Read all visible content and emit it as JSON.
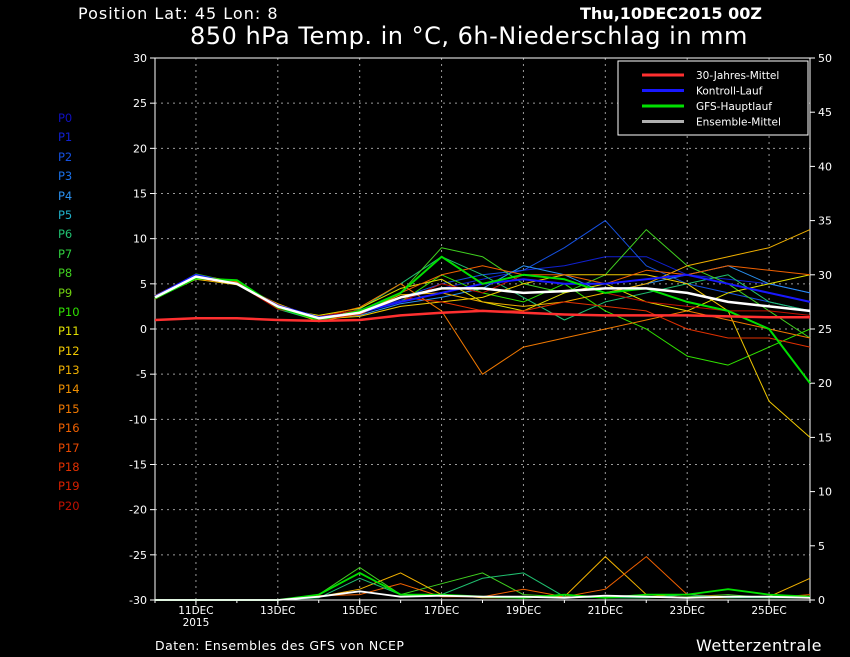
{
  "header": {
    "position": "Position   Lat: 45 Lon: 8",
    "run_date": "Thu,10DEC2015 00Z",
    "title": "850 hPa Temp. in °C, 6h-Niederschlag in mm"
  },
  "footer": {
    "source": "Daten: Ensembles des GFS von NCEP",
    "brand": "Wetterzentrale"
  },
  "members": [
    {
      "label": "P0",
      "color": "#1010c0"
    },
    {
      "label": "P1",
      "color": "#1020d0"
    },
    {
      "label": "P2",
      "color": "#1550e0"
    },
    {
      "label": "P3",
      "color": "#1a70e8"
    },
    {
      "label": "P4",
      "color": "#2a90f0"
    },
    {
      "label": "P5",
      "color": "#20b0c8"
    },
    {
      "label": "P6",
      "color": "#20c070"
    },
    {
      "label": "P7",
      "color": "#30d040"
    },
    {
      "label": "P8",
      "color": "#40d020"
    },
    {
      "label": "P9",
      "color": "#70d010"
    },
    {
      "label": "P10",
      "color": "#30e000"
    },
    {
      "label": "P11",
      "color": "#e0e000"
    },
    {
      "label": "P12",
      "color": "#f0c800"
    },
    {
      "label": "P13",
      "color": "#f0b000"
    },
    {
      "label": "P14",
      "color": "#f09000"
    },
    {
      "label": "P15",
      "color": "#f07800"
    },
    {
      "label": "P16",
      "color": "#f06000"
    },
    {
      "label": "P17",
      "color": "#e84800"
    },
    {
      "label": "P18",
      "color": "#e03000"
    },
    {
      "label": "P19",
      "color": "#d82000"
    },
    {
      "label": "P20",
      "color": "#c01000"
    }
  ],
  "chart_data": {
    "type": "line",
    "left_axis": {
      "label": "",
      "range": [
        -30,
        30
      ],
      "ticks": [
        30,
        25,
        20,
        15,
        10,
        5,
        0,
        -5,
        -10,
        -15,
        -20,
        -25,
        -30
      ]
    },
    "right_axis": {
      "label": "",
      "range": [
        0,
        50
      ],
      "ticks": [
        50,
        45,
        40,
        35,
        30,
        25,
        20,
        15,
        10,
        5,
        0
      ]
    },
    "x_axis": {
      "range": [
        "10DEC2015",
        "26DEC2015"
      ],
      "ticks": [
        {
          "date": "11DEC",
          "sub": "2015"
        },
        {
          "date": "13DEC",
          "sub": ""
        },
        {
          "date": "15DEC",
          "sub": ""
        },
        {
          "date": "17DEC",
          "sub": ""
        },
        {
          "date": "19DEC",
          "sub": ""
        },
        {
          "date": "21DEC",
          "sub": ""
        },
        {
          "date": "23DEC",
          "sub": ""
        },
        {
          "date": "25DEC",
          "sub": ""
        }
      ]
    },
    "grid": true,
    "legend_position": "top-right",
    "legend": [
      {
        "label": "30-Jahres-Mittel",
        "color": "#ff3030"
      },
      {
        "label": "Kontroll-Lauf",
        "color": "#1818ff"
      },
      {
        "label": "GFS-Hauptlauf",
        "color": "#00e000"
      },
      {
        "label": "Ensemble-Mittel",
        "color": "#b0b0b0"
      }
    ],
    "dates": [
      "10DEC",
      "11DEC",
      "12DEC",
      "13DEC",
      "14DEC",
      "15DEC",
      "16DEC",
      "17DEC",
      "18DEC",
      "19DEC",
      "20DEC",
      "21DEC",
      "22DEC",
      "23DEC",
      "24DEC",
      "25DEC",
      "26DEC"
    ],
    "series": [
      {
        "name": "30-Jahres-Mittel",
        "role": "climate",
        "values": [
          1.0,
          1.2,
          1.2,
          1.0,
          0.9,
          1.0,
          1.5,
          1.8,
          2.0,
          1.8,
          1.6,
          1.5,
          1.5,
          1.5,
          1.4,
          1.3,
          1.3
        ]
      },
      {
        "name": "Ensemble-Mittel",
        "role": "mean",
        "values": [
          3.5,
          5.8,
          5.0,
          2.5,
          1.2,
          1.8,
          3.5,
          4.5,
          4.5,
          4.0,
          4.2,
          4.5,
          4.5,
          4.0,
          3.0,
          2.5,
          2.0
        ]
      },
      {
        "name": "Kontroll-Lauf",
        "role": "control",
        "values": [
          3.6,
          6.0,
          5.0,
          2.6,
          1.3,
          1.8,
          3.0,
          4.0,
          5.0,
          5.5,
          5.0,
          5.0,
          5.5,
          6.0,
          5.0,
          4.0,
          3.0
        ]
      },
      {
        "name": "GFS-Hauptlauf",
        "role": "main",
        "values": [
          3.4,
          5.6,
          5.4,
          2.4,
          1.0,
          2.0,
          4.0,
          8.0,
          5.0,
          6.0,
          5.5,
          4.0,
          4.5,
          3.0,
          2.0,
          0.0,
          -6.0
        ]
      },
      {
        "name": "P1",
        "values": [
          3.6,
          5.9,
          5.1,
          2.6,
          1.3,
          1.8,
          3.2,
          4.5,
          5.5,
          6.5,
          7.0,
          8.0,
          8.0,
          6.0,
          5.5,
          5.0,
          4.0
        ]
      },
      {
        "name": "P2",
        "values": [
          3.5,
          5.7,
          5.2,
          2.5,
          1.1,
          2.1,
          3.5,
          5.0,
          6.0,
          6.5,
          9.0,
          12.0,
          7.0,
          5.0,
          4.0,
          3.0,
          2.0
        ]
      },
      {
        "name": "P4",
        "values": [
          3.4,
          5.8,
          5.0,
          2.6,
          1.2,
          1.5,
          2.8,
          3.5,
          4.5,
          7.0,
          6.0,
          4.0,
          5.0,
          6.0,
          7.0,
          5.0,
          4.0
        ]
      },
      {
        "name": "P6",
        "values": [
          3.7,
          5.5,
          5.3,
          2.2,
          0.9,
          2.2,
          5.0,
          8.0,
          6.0,
          3.5,
          1.0,
          3.0,
          4.0,
          5.0,
          6.0,
          3.0,
          2.0
        ]
      },
      {
        "name": "P8",
        "values": [
          3.3,
          5.9,
          4.9,
          2.4,
          1.4,
          1.6,
          4.0,
          9.0,
          8.0,
          5.0,
          4.0,
          6.0,
          11.0,
          7.0,
          5.0,
          2.0,
          -1.0
        ]
      },
      {
        "name": "P10",
        "values": [
          3.5,
          6.1,
          5.1,
          2.7,
          1.0,
          1.9,
          3.0,
          6.0,
          4.0,
          3.0,
          5.0,
          2.0,
          0.0,
          -3.0,
          -4.0,
          -2.0,
          0.0
        ]
      },
      {
        "name": "P11",
        "values": [
          3.6,
          5.6,
          5.2,
          2.3,
          1.5,
          2.3,
          4.5,
          5.5,
          3.0,
          2.0,
          4.0,
          5.0,
          3.0,
          2.0,
          4.0,
          5.0,
          6.0
        ]
      },
      {
        "name": "P12",
        "values": [
          3.4,
          5.5,
          4.9,
          2.8,
          1.1,
          1.4,
          2.5,
          3.0,
          3.5,
          5.0,
          6.0,
          6.0,
          6.0,
          5.0,
          2.0,
          -8.0,
          -12.0
        ]
      },
      {
        "name": "P13",
        "values": [
          3.5,
          5.9,
          5.3,
          2.5,
          0.8,
          1.7,
          3.8,
          4.0,
          3.0,
          2.5,
          3.0,
          4.0,
          5.0,
          7.0,
          8.0,
          9.0,
          11.0
        ]
      },
      {
        "name": "P15",
        "values": [
          3.7,
          6.0,
          5.0,
          2.4,
          1.3,
          2.4,
          5.0,
          2.0,
          -5.0,
          -2.0,
          -1.0,
          0.0,
          1.0,
          2.0,
          1.0,
          0.0,
          -1.0
        ]
      },
      {
        "name": "P16",
        "values": [
          3.3,
          5.7,
          5.2,
          2.6,
          1.2,
          2.0,
          4.0,
          6.0,
          7.0,
          6.0,
          6.0,
          5.0,
          6.5,
          6.0,
          7.0,
          6.5,
          6.0
        ]
      },
      {
        "name": "P18",
        "values": [
          3.6,
          5.8,
          5.1,
          2.7,
          1.0,
          1.6,
          3.5,
          3.0,
          2.0,
          2.0,
          3.0,
          2.5,
          2.0,
          0.0,
          -1.0,
          -1.0,
          -2.0
        ]
      },
      {
        "name": "P20",
        "values": [
          3.4,
          5.6,
          5.0,
          2.2,
          1.4,
          2.1,
          3.0,
          5.0,
          4.0,
          6.0,
          5.5,
          4.0,
          3.0,
          2.5,
          2.0,
          2.0,
          1.5
        ]
      }
    ],
    "precip_series": [
      {
        "name": "GFS-Hauptlauf",
        "role": "main",
        "values": [
          0,
          0,
          0,
          0,
          0.5,
          2.5,
          0.5,
          0.5,
          0.3,
          0.2,
          0.5,
          0.2,
          0.5,
          0.5,
          1.0,
          0.5,
          0.3
        ]
      },
      {
        "name": "Ensemble-Mittel",
        "role": "mean",
        "values": [
          0,
          0,
          0,
          0,
          0.3,
          0.8,
          0.3,
          0.4,
          0.3,
          0.3,
          0.2,
          0.4,
          0.3,
          0.2,
          0.3,
          0.3,
          0.2
        ]
      },
      {
        "name": "P8",
        "values": [
          0,
          0,
          0,
          0,
          0.5,
          3.0,
          0.5,
          1.5,
          2.5,
          0.5,
          0.3,
          0.2,
          0.2,
          0.3,
          0.5,
          0.2,
          0.2
        ]
      },
      {
        "name": "P13",
        "values": [
          0,
          0,
          0,
          0,
          0.3,
          1.0,
          2.5,
          0.5,
          0.2,
          0.2,
          0.3,
          4.0,
          0.5,
          0.2,
          0.2,
          0.3,
          2.0
        ]
      },
      {
        "name": "P16",
        "values": [
          0,
          0,
          0,
          0,
          0.4,
          0.5,
          1.5,
          0.3,
          0.3,
          1.0,
          0.3,
          1.0,
          4.0,
          0.5,
          0.3,
          0.2,
          0.5
        ]
      },
      {
        "name": "P6",
        "values": [
          0,
          0,
          0,
          0,
          0.2,
          2.0,
          0.5,
          0.5,
          2.0,
          2.5,
          0.3,
          0.2,
          0.2,
          0.5,
          0.2,
          0.2,
          0.2
        ]
      }
    ]
  }
}
